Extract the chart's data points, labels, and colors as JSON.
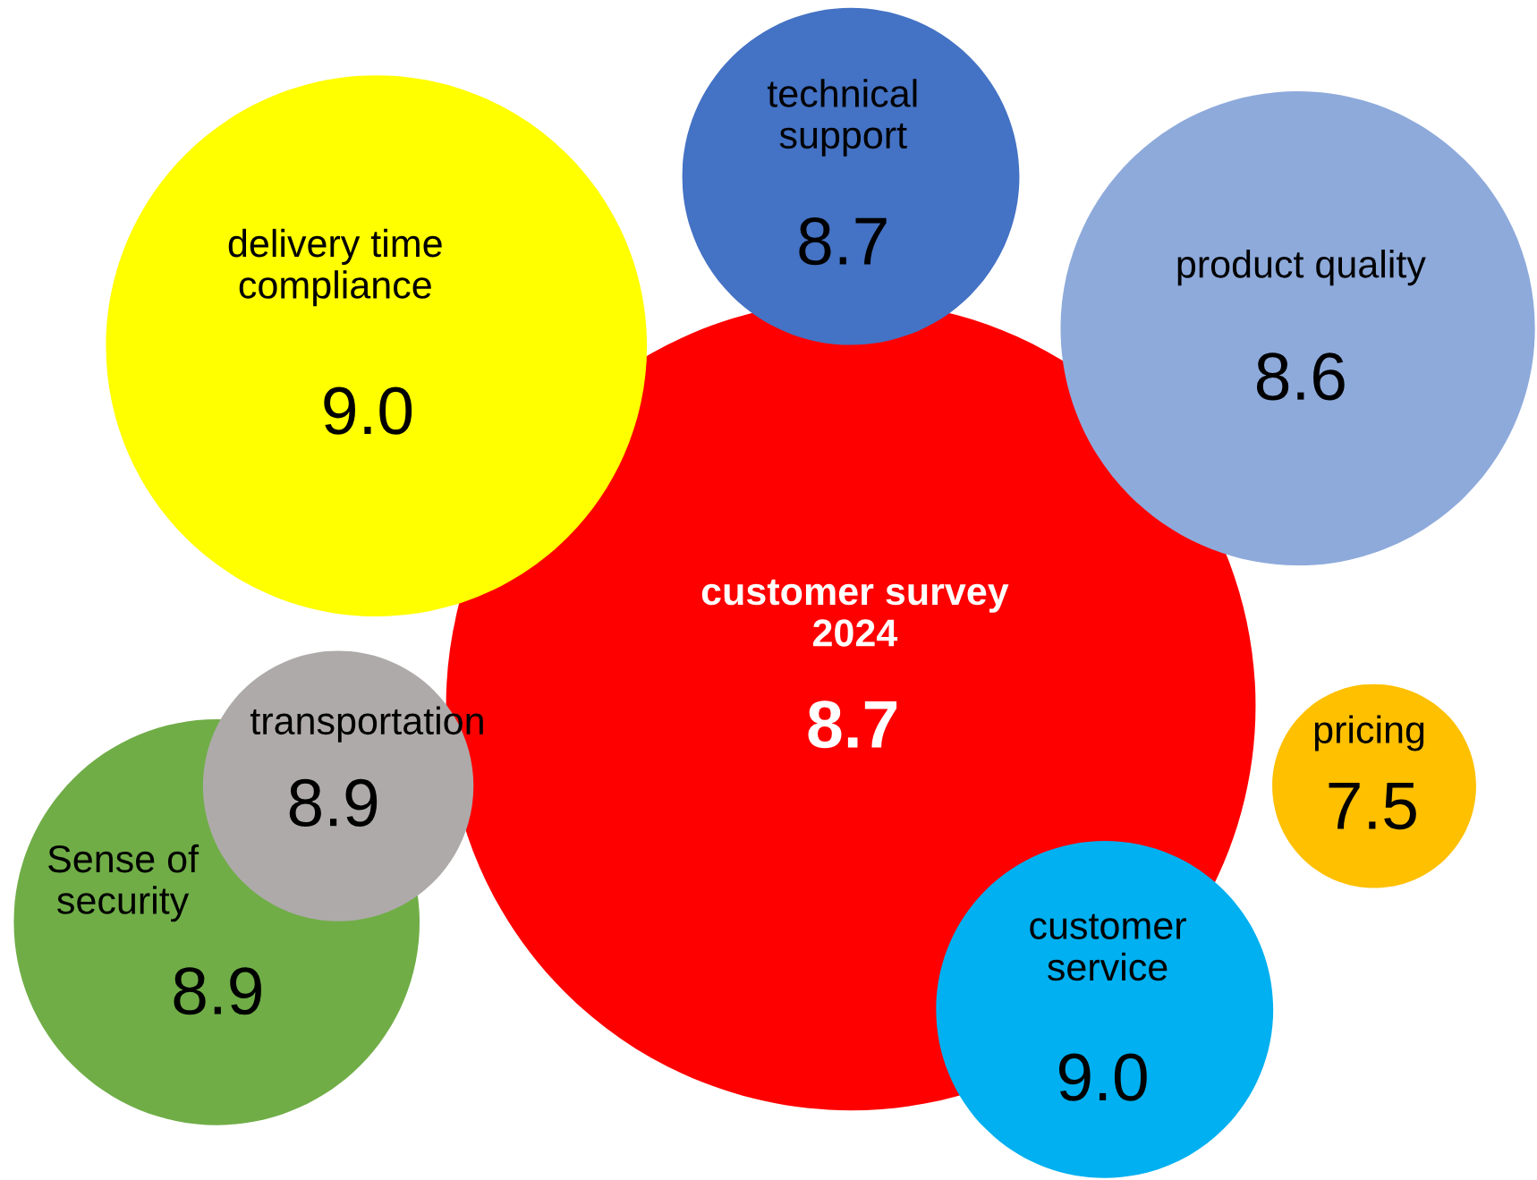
{
  "chart_data": {
    "type": "other",
    "categories": [
      "customer survey\n2024",
      "delivery time\ncompliance",
      "technical\nsupport",
      "product quality",
      "pricing",
      "customer\nservice",
      "Sense of\nsecurity",
      "transportation"
    ],
    "values": [
      8.7,
      9.0,
      8.7,
      8.6,
      7.5,
      9.0,
      8.9,
      8.9
    ],
    "colors": [
      "#ff0000",
      "#ffff00",
      "#4472c4",
      "#8eaadb",
      "#ffc000",
      "#00b0f0",
      "#70ad47",
      "#aeaaaa"
    ],
    "value_labels": [
      "8.7",
      "9.0",
      "8.7",
      "8.6",
      "7.5",
      "9.0",
      "8.9",
      "8.9"
    ]
  }
}
